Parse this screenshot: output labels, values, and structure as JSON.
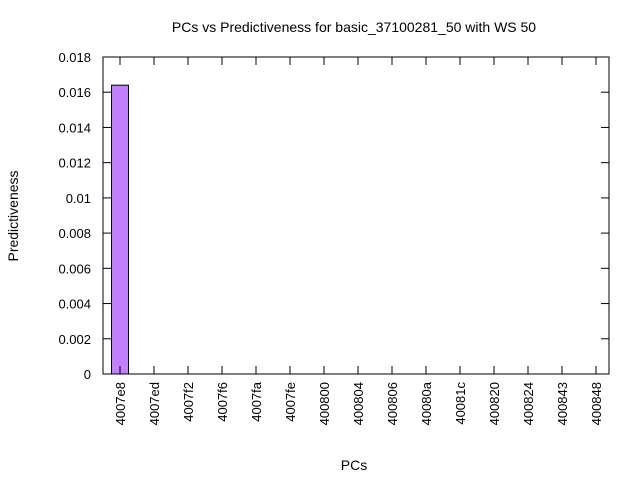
{
  "chart_data": {
    "type": "bar",
    "title": "PCs vs Predictiveness for basic_37100281_50 with WS 50",
    "xlabel": "PCs",
    "ylabel": "Predictiveness",
    "categories": [
      "4007e8",
      "4007ed",
      "4007f2",
      "4007f6",
      "4007fa",
      "4007fe",
      "400800",
      "400804",
      "400806",
      "40080a",
      "40081c",
      "400820",
      "400824",
      "400843",
      "400848"
    ],
    "values": [
      0.0164,
      0,
      0,
      0,
      0,
      0,
      0,
      0,
      0,
      0,
      0,
      0,
      0,
      0,
      0
    ],
    "ylim": [
      0,
      0.018
    ],
    "yticks": [
      "0",
      "0.002",
      "0.004",
      "0.006",
      "0.008",
      "0.01",
      "0.012",
      "0.014",
      "0.016",
      "0.018"
    ],
    "bar_color": "#c080ff",
    "grid": false
  }
}
